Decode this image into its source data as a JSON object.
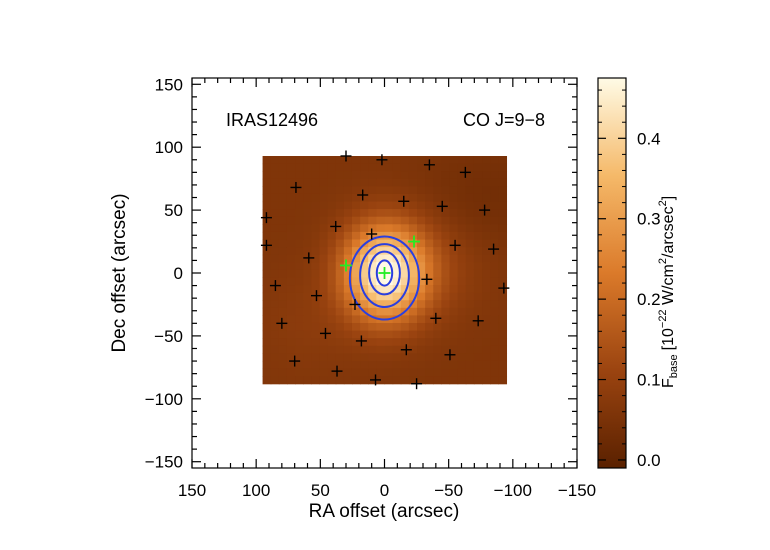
{
  "chart_data": {
    "type": "heatmap",
    "title_left": "IRAS12496",
    "title_right": "CO J=9−8",
    "xlabel": "RA offset (arcsec)",
    "ylabel": "Dec offset (arcsec)",
    "xlim": [
      150,
      -150
    ],
    "ylim": [
      -155,
      155
    ],
    "x_ticks": [
      150,
      100,
      50,
      0,
      -50,
      -100,
      -150
    ],
    "x_tick_labels": [
      "150",
      "100",
      "50",
      "0",
      "−50",
      "−100",
      "−150"
    ],
    "y_ticks": [
      150,
      100,
      50,
      0,
      -50,
      -100,
      -150
    ],
    "y_tick_labels": [
      "150",
      "100",
      "50",
      "0",
      "−50",
      "−100",
      "−150"
    ],
    "map_extent": {
      "ra": [
        95,
        -95
      ],
      "dec": [
        -88,
        93
      ]
    },
    "map_peak": {
      "ra": 0,
      "dec": 0,
      "value": 0.46
    },
    "map_background": 0.06,
    "colorbar": {
      "label_main": "F",
      "label_sub": "base",
      "label_units_1": "[10",
      "label_units_exp": "−22",
      "label_units_2": " W/cm",
      "label_units_exp2": "2",
      "label_units_3": "/arcsec",
      "label_units_exp3": "2",
      "label_units_4": "]",
      "range": [
        -0.01,
        0.475
      ],
      "ticks": [
        0.0,
        0.1,
        0.2,
        0.3,
        0.4
      ],
      "tick_labels": [
        "0.0",
        "0.1",
        "0.2",
        "0.3",
        "0.4"
      ]
    },
    "contour_color": "#2a3fe0",
    "contours": [
      {
        "level": 0.15,
        "rx": 27,
        "ry": 33,
        "cx": 0,
        "cy": -4
      },
      {
        "level": 0.25,
        "rx": 19,
        "ry": 25,
        "cx": 0,
        "cy": -2
      },
      {
        "level": 0.35,
        "rx": 12,
        "ry": 17,
        "cx": 0,
        "cy": 0
      },
      {
        "level": 0.42,
        "rx": 6,
        "ry": 10,
        "cx": 0,
        "cy": 0
      }
    ],
    "black_markers": [
      [
        30,
        93
      ],
      [
        2,
        90
      ],
      [
        -35,
        86
      ],
      [
        -63,
        80
      ],
      [
        69,
        68
      ],
      [
        17,
        62
      ],
      [
        -15,
        57
      ],
      [
        -45,
        53
      ],
      [
        -78,
        50
      ],
      [
        92,
        44
      ],
      [
        38,
        37
      ],
      [
        10,
        31
      ],
      [
        -55,
        22
      ],
      [
        -85,
        19
      ],
      [
        92,
        22
      ],
      [
        59,
        12
      ],
      [
        -33,
        -5
      ],
      [
        -93,
        -12
      ],
      [
        85,
        -10
      ],
      [
        53,
        -18
      ],
      [
        23,
        -25
      ],
      [
        -40,
        -36
      ],
      [
        -73,
        -38
      ],
      [
        80,
        -40
      ],
      [
        46,
        -48
      ],
      [
        18,
        -54
      ],
      [
        -17,
        -61
      ],
      [
        -51,
        -65
      ],
      [
        70,
        -70
      ],
      [
        37,
        -78
      ],
      [
        7,
        -85
      ],
      [
        -25,
        -88
      ]
    ],
    "green_markers": [
      [
        30,
        6
      ],
      [
        0,
        0
      ],
      [
        -23,
        25
      ]
    ],
    "grid": false
  }
}
